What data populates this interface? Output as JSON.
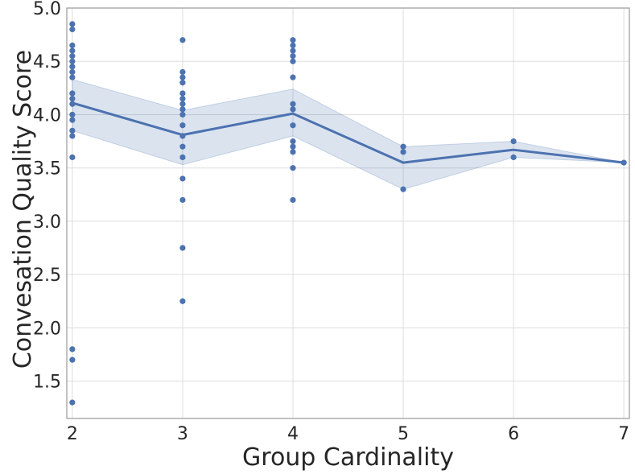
{
  "chart_data": {
    "type": "line",
    "xlabel": "Group Cardinality",
    "ylabel": "Convesation Quality Score",
    "xlim": [
      1.95,
      7.05
    ],
    "ylim": [
      1.15,
      5.0
    ],
    "x_ticks": [
      2,
      3,
      4,
      5,
      6,
      7
    ],
    "y_ticks": [
      1.5,
      2.0,
      2.5,
      3.0,
      3.5,
      4.0,
      4.5,
      5.0
    ],
    "grid": true,
    "colors": {
      "series": "#4c72b0",
      "band": "#4c72b0"
    },
    "mean_line": {
      "x": [
        2,
        3,
        4,
        5,
        6,
        7
      ],
      "y": [
        4.11,
        3.81,
        4.01,
        3.55,
        3.67,
        3.55
      ]
    },
    "confidence_band": {
      "x": [
        2,
        3,
        4,
        5,
        6,
        7
      ],
      "lower": [
        3.85,
        3.53,
        3.8,
        3.3,
        3.6,
        3.55
      ],
      "upper": [
        4.33,
        4.04,
        4.24,
        3.7,
        3.75,
        3.55
      ]
    },
    "scatter": [
      {
        "x": 2,
        "values": [
          4.85,
          4.8,
          4.65,
          4.6,
          4.55,
          4.5,
          4.45,
          4.4,
          4.35,
          4.2,
          4.15,
          4.1,
          4.0,
          3.95,
          3.85,
          3.8,
          3.6,
          1.8,
          1.7,
          1.3
        ]
      },
      {
        "x": 3,
        "values": [
          4.7,
          4.4,
          4.35,
          4.3,
          4.2,
          4.15,
          4.1,
          4.05,
          4.0,
          3.9,
          3.8,
          3.7,
          3.6,
          3.4,
          3.2,
          2.75,
          2.25
        ]
      },
      {
        "x": 4,
        "values": [
          4.7,
          4.65,
          4.6,
          4.55,
          4.5,
          4.35,
          4.1,
          4.05,
          3.9,
          3.75,
          3.7,
          3.65,
          3.5,
          3.2
        ]
      },
      {
        "x": 5,
        "values": [
          3.7,
          3.65,
          3.3
        ]
      },
      {
        "x": 6,
        "values": [
          3.75,
          3.6
        ]
      },
      {
        "x": 7,
        "values": [
          3.55
        ]
      }
    ]
  }
}
